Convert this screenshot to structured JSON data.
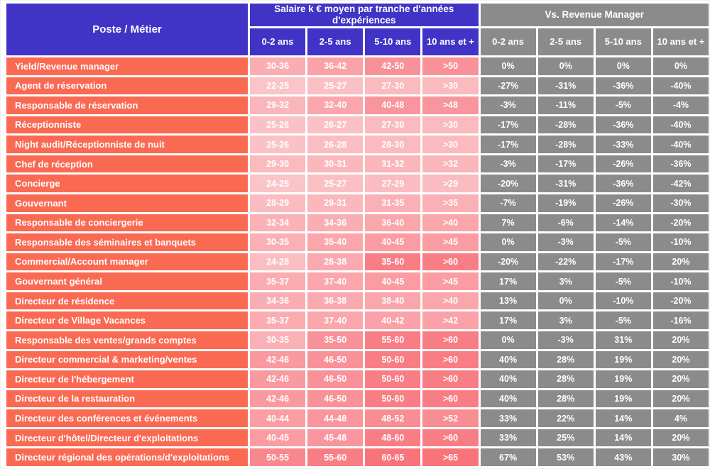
{
  "colors": {
    "purple": "#4033c6",
    "coral": "#fa6952",
    "gray": "#8b8b8b",
    "heat_low": "#fac4c8",
    "heat_high": "#f9737b",
    "grid_gap": "#ffffff",
    "text": "#ffffff"
  },
  "chart_data": {
    "type": "table",
    "corner_header": "Poste / Métier",
    "group_headers": [
      "Salaire k € moyen par tranche d'années d'expériences",
      "Vs. Revenue Manager"
    ],
    "experience_columns": [
      "0-2 ans",
      "2-5 ans",
      "5-10 ans",
      "10 ans et +"
    ],
    "rows": [
      {
        "poste": "Yield/Revenue manager",
        "salaire_k_eur": [
          "30-36",
          "36-42",
          "42-50",
          ">50"
        ],
        "vs_revenue_manager": [
          "0%",
          "0%",
          "0%",
          "0%"
        ]
      },
      {
        "poste": "Agent de réservation",
        "salaire_k_eur": [
          "22-25",
          "25-27",
          "27-30",
          ">30"
        ],
        "vs_revenue_manager": [
          "-27%",
          "-31%",
          "-36%",
          "-40%"
        ]
      },
      {
        "poste": "Responsable de réservation",
        "salaire_k_eur": [
          "29-32",
          "32-40",
          "40-48",
          ">48"
        ],
        "vs_revenue_manager": [
          "-3%",
          "-11%",
          "-5%",
          "-4%"
        ]
      },
      {
        "poste": "Réceptionniste",
        "salaire_k_eur": [
          "25-26",
          "26-27",
          "27-30",
          ">30"
        ],
        "vs_revenue_manager": [
          "-17%",
          "-28%",
          "-36%",
          "-40%"
        ]
      },
      {
        "poste": "Night audit/Réceptionniste de nuit",
        "salaire_k_eur": [
          "25-26",
          "26-28",
          "28-30",
          ">30"
        ],
        "vs_revenue_manager": [
          "-17%",
          "-28%",
          "-33%",
          "-40%"
        ]
      },
      {
        "poste": "Chef de réception",
        "salaire_k_eur": [
          "29-30",
          "30-31",
          "31-32",
          ">32"
        ],
        "vs_revenue_manager": [
          "-3%",
          "-17%",
          "-26%",
          "-36%"
        ]
      },
      {
        "poste": "Concierge",
        "salaire_k_eur": [
          "24-25",
          "25-27",
          "27-29",
          ">29"
        ],
        "vs_revenue_manager": [
          "-20%",
          "-31%",
          "-36%",
          "-42%"
        ]
      },
      {
        "poste": "Gouvernant",
        "salaire_k_eur": [
          "28-29",
          "29-31",
          "31-35",
          ">35"
        ],
        "vs_revenue_manager": [
          "-7%",
          "-19%",
          "-26%",
          "-30%"
        ]
      },
      {
        "poste": "Responsable de conciergerie",
        "salaire_k_eur": [
          "32-34",
          "34-36",
          "36-40",
          ">40"
        ],
        "vs_revenue_manager": [
          "7%",
          "-6%",
          "-14%",
          "-20%"
        ]
      },
      {
        "poste": "Responsable des séminaires et banquets",
        "salaire_k_eur": [
          "30-35",
          "35-40",
          "40-45",
          ">45"
        ],
        "vs_revenue_manager": [
          "0%",
          "-3%",
          "-5%",
          "-10%"
        ]
      },
      {
        "poste": "Commercial/Account manager",
        "salaire_k_eur": [
          "24-28",
          "28-38",
          "35-60",
          ">60"
        ],
        "vs_revenue_manager": [
          "-20%",
          "-22%",
          "-17%",
          "20%"
        ]
      },
      {
        "poste": "Gouvernant général",
        "salaire_k_eur": [
          "35-37",
          "37-40",
          "40-45",
          ">45"
        ],
        "vs_revenue_manager": [
          "17%",
          "3%",
          "-5%",
          "-10%"
        ]
      },
      {
        "poste": "Directeur de résidence",
        "salaire_k_eur": [
          "34-36",
          "36-38",
          "38-40",
          ">40"
        ],
        "vs_revenue_manager": [
          "13%",
          "0%",
          "-10%",
          "-20%"
        ]
      },
      {
        "poste": "Directeur de Village Vacances",
        "salaire_k_eur": [
          "35-37",
          "37-40",
          "40-42",
          ">42"
        ],
        "vs_revenue_manager": [
          "17%",
          "3%",
          "-5%",
          "-16%"
        ]
      },
      {
        "poste": "Responsable des ventes/grands comptes",
        "salaire_k_eur": [
          "30-35",
          "35-50",
          "55-60",
          ">60"
        ],
        "vs_revenue_manager": [
          "0%",
          "-3%",
          "31%",
          "20%"
        ]
      },
      {
        "poste": "Directeur commercial & marketing/ventes",
        "salaire_k_eur": [
          "42-46",
          "46-50",
          "50-60",
          ">60"
        ],
        "vs_revenue_manager": [
          "40%",
          "28%",
          "19%",
          "20%"
        ]
      },
      {
        "poste": "Directeur de l'hébergement",
        "salaire_k_eur": [
          "42-46",
          "46-50",
          "50-60",
          ">60"
        ],
        "vs_revenue_manager": [
          "40%",
          "28%",
          "19%",
          "20%"
        ]
      },
      {
        "poste": "Directeur de la restauration",
        "salaire_k_eur": [
          "42-46",
          "46-50",
          "50-60",
          ">60"
        ],
        "vs_revenue_manager": [
          "40%",
          "28%",
          "19%",
          "20%"
        ]
      },
      {
        "poste": "Directeur des conférences et événements",
        "salaire_k_eur": [
          "40-44",
          "44-48",
          "48-52",
          ">52"
        ],
        "vs_revenue_manager": [
          "33%",
          "22%",
          "14%",
          "4%"
        ]
      },
      {
        "poste": "Directeur d'hôtel/Directeur d'exploitations",
        "salaire_k_eur": [
          "40-45",
          "45-48",
          "48-60",
          ">60"
        ],
        "vs_revenue_manager": [
          "33%",
          "25%",
          "14%",
          "20%"
        ]
      },
      {
        "poste": "Directeur régional des opérations/d'exploitations",
        "salaire_k_eur": [
          "50-55",
          "55-60",
          "60-65",
          ">65"
        ],
        "vs_revenue_manager": [
          "67%",
          "53%",
          "43%",
          "30%"
        ]
      }
    ]
  }
}
